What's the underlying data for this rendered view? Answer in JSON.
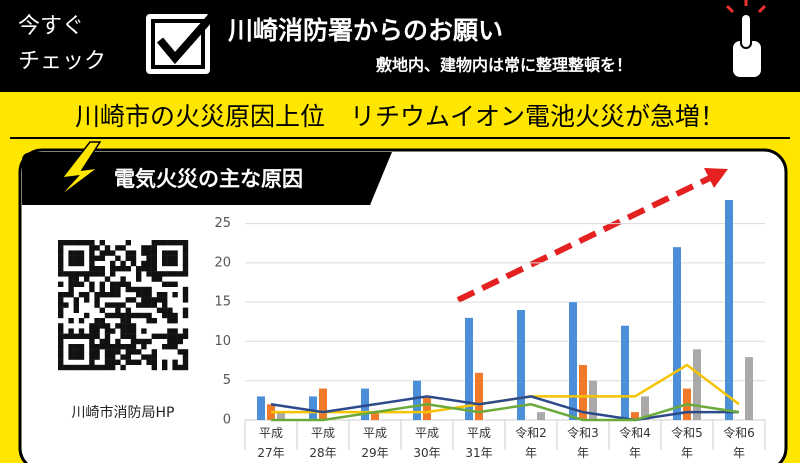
{
  "header": {
    "badge": "今すぐ\nチェック",
    "title": "川崎消防署からのお願い",
    "subtitle": "敷地内、建物内は常に整理整頓を！"
  },
  "headline": "川崎市の火災原因上位　リチウムイオン電池火災が急増！",
  "qr_caption": "川崎市消防局HP",
  "chart_data": {
    "type": "bar",
    "title": "電気火災の主な原因",
    "categories": [
      "平成\n27年",
      "平成\n28年",
      "平成\n29年",
      "平成\n30年",
      "平成\n31年",
      "令和2\n年",
      "令和3\n年",
      "令和4\n年",
      "令和5\n年",
      "令和6\n年"
    ],
    "series": [
      {
        "type": "bar",
        "color": "#4a8fd8",
        "values": [
          3,
          3,
          4,
          5,
          13,
          14,
          15,
          12,
          22,
          28
        ]
      },
      {
        "type": "bar",
        "color": "#f07a2a",
        "values": [
          2,
          4,
          1,
          3,
          6,
          0,
          7,
          1,
          4,
          0
        ]
      },
      {
        "type": "bar",
        "color": "#a9a9a9",
        "values": [
          1,
          0,
          0,
          0,
          0,
          1,
          5,
          3,
          9,
          8
        ]
      },
      {
        "type": "line",
        "color": "#f5c400",
        "values": [
          1,
          1,
          1,
          1,
          2,
          3,
          3,
          3,
          7,
          2
        ]
      },
      {
        "type": "line",
        "color": "#2d4a8a",
        "values": [
          2,
          1,
          2,
          3,
          2,
          3,
          1,
          0,
          1,
          1
        ]
      },
      {
        "type": "line",
        "color": "#6aaa3a",
        "values": [
          0,
          0,
          1,
          2,
          1,
          2,
          0,
          0,
          2,
          1
        ]
      }
    ],
    "ylim": [
      0,
      28
    ],
    "yticks": [
      0,
      5,
      10,
      15,
      20,
      25
    ],
    "grid": true
  }
}
